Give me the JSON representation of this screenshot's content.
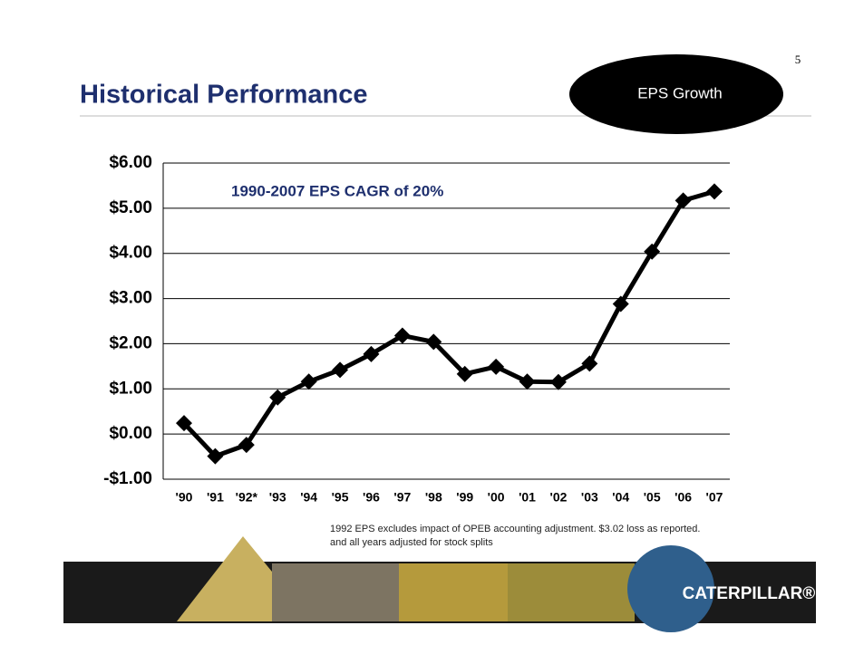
{
  "page_number": "5",
  "header": {
    "title": "Historical Performance",
    "badge": "EPS Growth"
  },
  "chart_data": {
    "type": "line",
    "annotation": "1990-2007 EPS CAGR of 20%",
    "categories": [
      "'90",
      "'91",
      "'92*",
      "'93",
      "'94",
      "'95",
      "'96",
      "'97",
      "'98",
      "'99",
      "'00",
      "'01",
      "'02",
      "'03",
      "'04",
      "'05",
      "'06",
      "'07"
    ],
    "series": [
      {
        "name": "EPS",
        "color": "#000000",
        "values": [
          0.24,
          -0.49,
          -0.24,
          0.81,
          1.16,
          1.42,
          1.77,
          2.18,
          2.04,
          1.33,
          1.49,
          1.16,
          1.15,
          1.56,
          2.88,
          4.04,
          5.17,
          5.37
        ]
      }
    ],
    "ylim": [
      -1,
      6
    ],
    "yticks": [
      {
        "value": -1,
        "label": "-$1.00"
      },
      {
        "value": 0,
        "label": "$0.00"
      },
      {
        "value": 1,
        "label": "$1.00"
      },
      {
        "value": 2,
        "label": "$2.00"
      },
      {
        "value": 3,
        "label": "$3.00"
      },
      {
        "value": 4,
        "label": "$4.00"
      },
      {
        "value": 5,
        "label": "$5.00"
      },
      {
        "value": 6,
        "label": "$6.00"
      }
    ],
    "grid": true
  },
  "footnotes": [
    "1992 EPS excludes impact of OPEB accounting adjustment.  $3.02 loss as reported.",
    " and all years adjusted for stock splits"
  ],
  "brand": "CATERPILLAR®"
}
